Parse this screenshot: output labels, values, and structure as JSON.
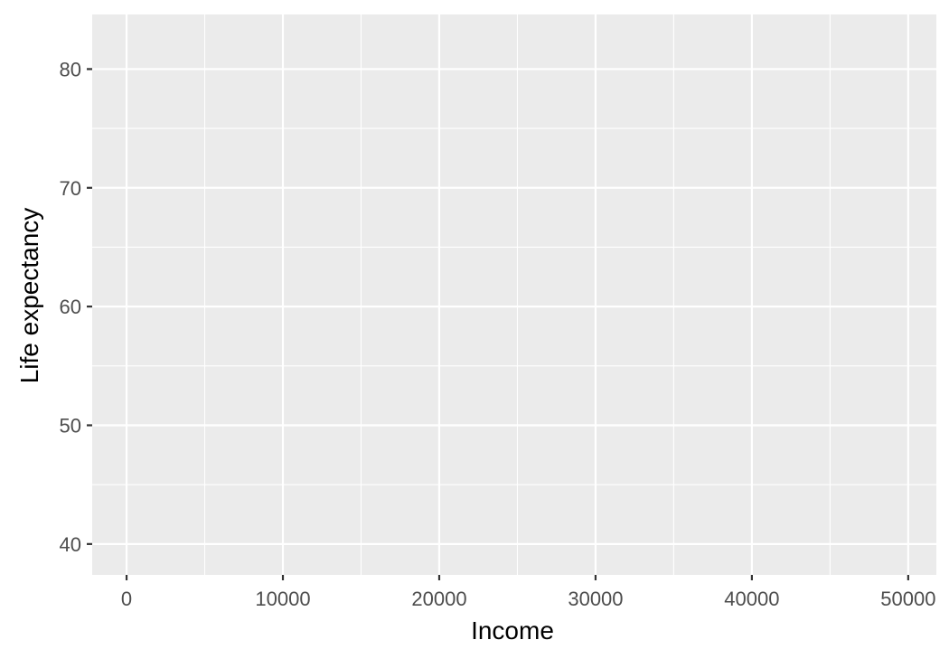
{
  "chart_data": {
    "type": "scatter",
    "title": "",
    "xlabel": "Income",
    "ylabel": "Life expectancy",
    "xlim": [
      -2200,
      51800
    ],
    "ylim": [
      37.4,
      84.6
    ],
    "x_ticks": [
      0,
      10000,
      20000,
      30000,
      40000,
      50000
    ],
    "x_tick_labels": [
      "0",
      "10000",
      "20000",
      "30000",
      "40000",
      "50000"
    ],
    "x_minor_ticks": [
      5000,
      15000,
      25000,
      35000,
      45000
    ],
    "y_ticks": [
      40,
      50,
      60,
      70,
      80
    ],
    "y_tick_labels": [
      "40",
      "50",
      "60",
      "70",
      "80"
    ],
    "y_minor_ticks": [
      45,
      55,
      65,
      75
    ],
    "series": [
      {
        "x": [],
        "y": []
      }
    ],
    "grid": true,
    "legend": "none",
    "colors": {
      "panel_background": "#ebebeb",
      "grid_line": "#ffffff",
      "tick_mark": "#333333",
      "tick_label": "#4d4d4d",
      "axis_title": "#000000"
    }
  }
}
